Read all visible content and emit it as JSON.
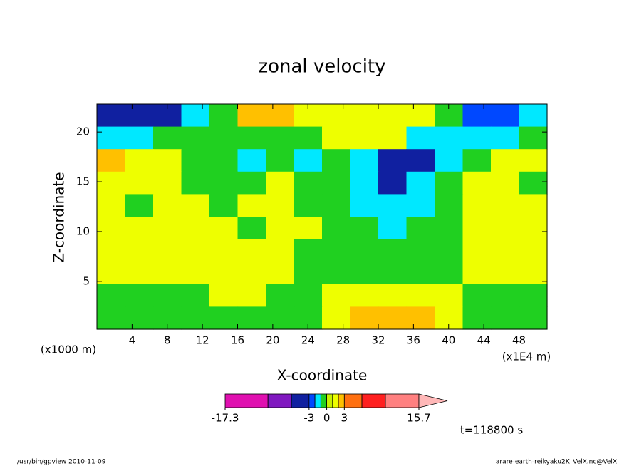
{
  "chart_data": {
    "type": "contour",
    "title": "zonal velocity",
    "x_label": "X-coordinate",
    "y_label": "Z-coordinate",
    "x_unit_left": "(x1000 m)",
    "x_unit_right": "(x1E4 m)",
    "time_label": "t=118800 s",
    "footer_left": "/usr/bin/gpview  2010-11-09",
    "footer_right": "arare-earth-reikyaku2K_VelX.nc@VelX",
    "xlim": [
      0,
      51.2
    ],
    "ylim": [
      0.2,
      22.8
    ],
    "xticks": [
      4,
      8,
      12,
      16,
      20,
      24,
      28,
      32,
      36,
      40,
      44,
      48
    ],
    "yticks": [
      5,
      10,
      15,
      20
    ],
    "levels": [
      -17.3,
      -10,
      -6,
      -3,
      -2,
      -1,
      0,
      1,
      2,
      3,
      6,
      10,
      15.7
    ],
    "colors": [
      "#e010b0",
      "#8018c0",
      "#1020a0",
      "#0048ff",
      "#00e8ff",
      "#20d020",
      "#c8f000",
      "#eeff00",
      "#ffc000",
      "#ff7010",
      "#ff2020",
      "#ff8080"
    ],
    "over_color": "#ffb8b8",
    "colorbar_ticks": [
      -17.3,
      -3,
      0,
      3,
      15.7
    ],
    "z": [
      [
        -4,
        -4,
        -4,
        -1.5,
        -0.5,
        2.5,
        2.5,
        1.5,
        1.5,
        1.5,
        1.5,
        1.5,
        -0.5,
        -2.5,
        -2.5,
        -1.5
      ],
      [
        -1.5,
        -1.5,
        -0.5,
        -0.5,
        -0.5,
        -0.5,
        -0.5,
        -0.5,
        1.5,
        1.5,
        1.5,
        -1.5,
        -1.5,
        -1.5,
        -1.5,
        -0.5
      ],
      [
        2.5,
        1.5,
        1.5,
        -0.5,
        -0.5,
        -1.5,
        -0.5,
        -1.5,
        -0.5,
        -1.5,
        -4,
        -4,
        -1.5,
        -0.5,
        1.5,
        1.5
      ],
      [
        1.5,
        1.5,
        1.5,
        -0.5,
        -0.5,
        -0.5,
        1.5,
        -0.5,
        -0.5,
        -1.5,
        -4,
        -1.5,
        -0.5,
        1.5,
        1.5,
        -0.5
      ],
      [
        1.5,
        -0.5,
        1.5,
        1.5,
        -0.5,
        1.5,
        1.5,
        -0.5,
        -0.5,
        -1.5,
        -1.5,
        -1.5,
        -0.5,
        1.5,
        1.5,
        1.5
      ],
      [
        1.5,
        1.5,
        1.5,
        1.5,
        1.5,
        -0.5,
        1.5,
        1.5,
        -0.5,
        -0.5,
        -1.5,
        -0.5,
        -0.5,
        1.5,
        1.5,
        1.5
      ],
      [
        1.5,
        1.5,
        1.5,
        1.5,
        1.5,
        1.5,
        1.5,
        -0.5,
        -0.5,
        -0.5,
        -0.5,
        -0.5,
        -0.5,
        1.5,
        1.5,
        1.5
      ],
      [
        1.5,
        1.5,
        1.5,
        1.5,
        1.5,
        1.5,
        1.5,
        -0.5,
        -0.5,
        -0.5,
        -0.5,
        -0.5,
        -0.5,
        1.5,
        1.5,
        1.5
      ],
      [
        -0.5,
        -0.5,
        -0.5,
        -0.5,
        1.5,
        1.5,
        -0.5,
        -0.5,
        1.5,
        1.5,
        1.5,
        1.5,
        1.5,
        -0.5,
        -0.5,
        -0.5
      ],
      [
        -0.5,
        -0.5,
        -0.5,
        -0.5,
        -0.5,
        -0.5,
        -0.5,
        -0.5,
        1.5,
        2.5,
        2.5,
        2.5,
        1.5,
        -0.5,
        -0.5,
        -0.5
      ]
    ]
  }
}
